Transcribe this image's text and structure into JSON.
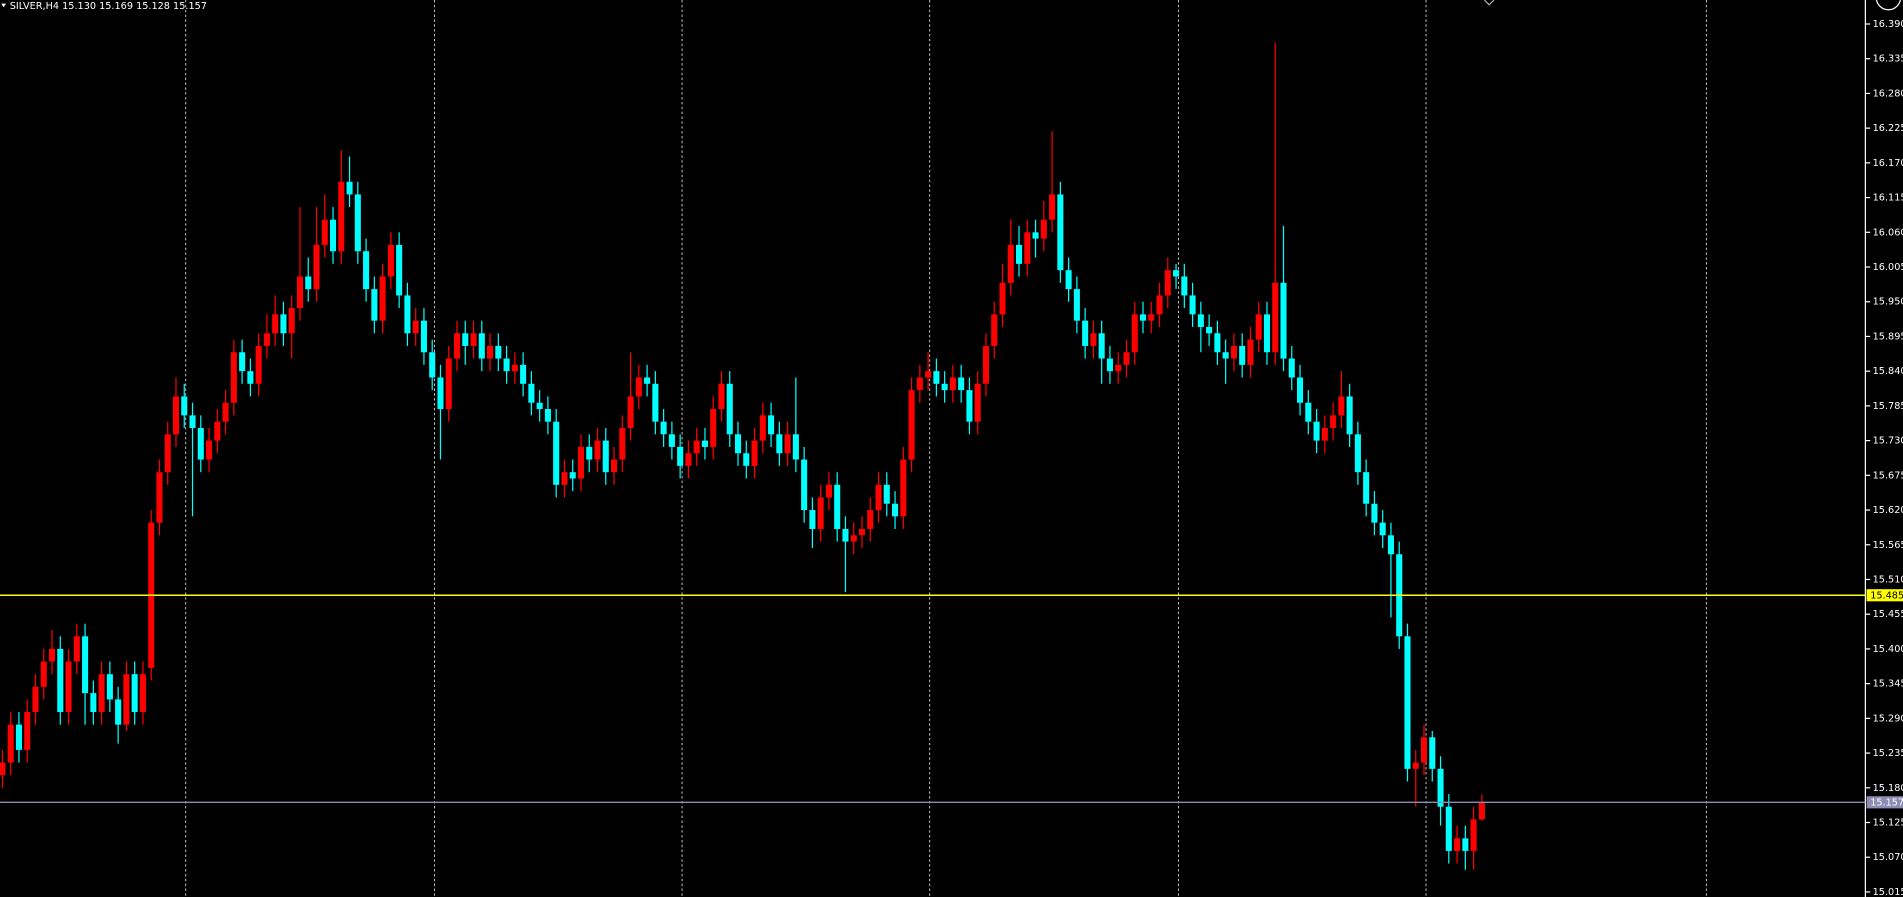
{
  "chart_data": {
    "type": "candlestick",
    "title": "SILVER,H4  15.130 15.169 15.128 15.157",
    "up_color": "#ff0000",
    "down_color": "#00ffff",
    "ylim": [
      15.007,
      16.428
    ],
    "yticks": [
      {
        "value": 16.39,
        "label": "16.390"
      },
      16.335,
      {
        "value": 16.28,
        "label": "16.280"
      },
      16.225,
      {
        "value": 16.17,
        "label": "16.170"
      },
      16.115,
      {
        "value": 16.06,
        "label": "16.060"
      },
      16.005,
      {
        "value": 15.95,
        "label": "15.950"
      },
      15.895,
      {
        "value": 15.84,
        "label": "15.840"
      },
      15.785,
      {
        "value": 15.73,
        "label": "15.730"
      },
      15.675,
      {
        "value": 15.62,
        "label": "15.620"
      },
      15.565,
      {
        "value": 15.51,
        "label": "15.510"
      },
      15.455,
      {
        "value": 15.4,
        "label": "15.400"
      },
      15.345,
      {
        "value": 15.29,
        "label": "15.290"
      },
      15.235,
      {
        "value": 15.18,
        "label": "15.180"
      },
      15.125,
      {
        "value": 15.07,
        "label": "15.070"
      },
      15.015
    ],
    "levels": [
      {
        "value": 15.485,
        "color": "#ffff00",
        "text_color": "#000000"
      },
      {
        "value": 15.157,
        "color": "#8c8cb4",
        "text_color": "#ffffff"
      }
    ],
    "open": [
      15.2,
      15.22,
      15.28,
      15.24,
      15.3,
      15.34,
      15.38,
      15.4,
      15.3,
      15.38,
      15.42,
      15.33,
      15.3,
      15.36,
      15.32,
      15.28,
      15.36,
      15.3,
      15.37,
      15.6,
      15.68,
      15.74,
      15.8,
      15.77,
      15.75,
      15.7,
      15.73,
      15.76,
      15.79,
      15.87,
      15.84,
      15.82,
      15.88,
      15.9,
      15.93,
      15.9,
      15.94,
      15.99,
      15.97,
      16.04,
      16.08,
      16.03,
      16.14,
      16.12,
      16.03,
      15.97,
      15.92,
      15.99,
      16.04,
      15.96,
      15.9,
      15.92,
      15.87,
      15.83,
      15.78,
      15.86,
      15.9,
      15.88,
      15.9,
      15.86,
      15.88,
      15.86,
      15.84,
      15.85,
      15.82,
      15.79,
      15.78,
      15.76,
      15.66,
      15.68,
      15.67,
      15.72,
      15.7,
      15.73,
      15.68,
      15.7,
      15.75,
      15.8,
      15.83,
      15.82,
      15.76,
      15.74,
      15.72,
      15.69,
      15.71,
      15.73,
      15.72,
      15.78,
      15.82,
      15.74,
      15.71,
      15.69,
      15.73,
      15.77,
      15.74,
      15.71,
      15.74,
      15.7,
      15.62,
      15.59,
      15.64,
      15.66,
      15.59,
      15.57,
      15.58,
      15.59,
      15.62,
      15.66,
      15.63,
      15.61,
      15.7,
      15.81,
      15.83,
      15.84,
      15.82,
      15.81,
      15.83,
      15.81,
      15.76,
      15.82,
      15.88,
      15.93,
      15.98,
      16.04,
      16.01,
      16.06,
      16.05,
      16.08,
      16.12,
      16.0,
      15.97,
      15.92,
      15.88,
      15.9,
      15.86,
      15.84,
      15.85,
      15.87,
      15.93,
      15.92,
      15.93,
      15.96,
      16.0,
      15.99,
      15.96,
      15.93,
      15.91,
      15.9,
      15.87,
      15.86,
      15.88,
      15.85,
      15.89,
      15.93,
      15.87,
      15.98,
      15.86,
      15.83,
      15.79,
      15.76,
      15.73,
      15.75,
      15.77,
      15.8,
      15.74,
      15.68,
      15.63,
      15.6,
      15.58,
      15.55,
      15.42,
      15.21,
      15.22,
      15.26,
      15.21,
      15.15,
      15.08,
      15.1,
      15.08,
      15.13
    ],
    "high": [
      15.24,
      15.3,
      15.3,
      15.32,
      15.36,
      15.4,
      15.43,
      15.42,
      15.4,
      15.44,
      15.44,
      15.35,
      15.38,
      15.38,
      15.34,
      15.38,
      15.38,
      15.38,
      15.62,
      15.7,
      15.76,
      15.83,
      15.82,
      15.79,
      15.77,
      15.75,
      15.78,
      15.81,
      15.89,
      15.89,
      15.86,
      15.9,
      15.93,
      15.96,
      15.95,
      15.96,
      16.1,
      16.02,
      16.1,
      16.12,
      16.1,
      16.19,
      16.18,
      16.14,
      16.05,
      15.99,
      16.01,
      16.06,
      16.06,
      15.98,
      15.94,
      15.94,
      15.89,
      15.85,
      15.88,
      15.92,
      15.92,
      15.92,
      15.92,
      15.9,
      15.9,
      15.88,
      15.87,
      15.87,
      15.84,
      15.81,
      15.8,
      15.78,
      15.7,
      15.7,
      15.74,
      15.74,
      15.75,
      15.75,
      15.72,
      15.77,
      15.87,
      15.85,
      15.85,
      15.84,
      15.78,
      15.76,
      15.74,
      15.73,
      15.75,
      15.75,
      15.8,
      15.84,
      15.84,
      15.76,
      15.73,
      15.75,
      15.79,
      15.79,
      15.76,
      15.76,
      15.83,
      15.72,
      15.64,
      15.66,
      15.68,
      15.68,
      15.61,
      15.6,
      15.61,
      15.64,
      15.68,
      15.68,
      15.65,
      15.72,
      15.83,
      15.85,
      15.87,
      15.86,
      15.84,
      15.85,
      15.85,
      15.83,
      15.84,
      15.9,
      15.95,
      16.01,
      16.08,
      16.07,
      16.08,
      16.08,
      16.11,
      16.22,
      16.14,
      16.02,
      15.99,
      15.94,
      15.92,
      15.92,
      15.88,
      15.87,
      15.89,
      15.95,
      15.95,
      15.95,
      15.98,
      16.02,
      16.01,
      16.01,
      15.98,
      15.95,
      15.93,
      15.92,
      15.89,
      15.9,
      15.9,
      15.91,
      15.95,
      15.95,
      16.36,
      16.07,
      15.88,
      15.85,
      15.81,
      15.78,
      15.77,
      15.79,
      15.84,
      15.82,
      15.76,
      15.7,
      15.65,
      15.62,
      15.6,
      15.57,
      15.44,
      15.24,
      15.28,
      15.27,
      15.23,
      15.17,
      15.12,
      15.12,
      15.15,
      15.169
    ],
    "low": [
      15.18,
      15.2,
      15.22,
      15.22,
      15.28,
      15.32,
      15.36,
      15.28,
      15.28,
      15.36,
      15.28,
      15.28,
      15.28,
      15.3,
      15.25,
      15.27,
      15.28,
      15.28,
      15.35,
      15.58,
      15.66,
      15.72,
      15.75,
      15.61,
      15.68,
      15.68,
      15.71,
      15.74,
      15.77,
      15.82,
      15.8,
      15.8,
      15.86,
      15.88,
      15.88,
      15.86,
      15.92,
      15.95,
      15.95,
      16.02,
      16.01,
      16.01,
      16.1,
      16.01,
      15.95,
      15.9,
      15.9,
      15.97,
      15.94,
      15.88,
      15.88,
      15.85,
      15.81,
      15.7,
      15.76,
      15.84,
      15.85,
      15.86,
      15.84,
      15.84,
      15.84,
      15.82,
      15.82,
      15.8,
      15.77,
      15.76,
      15.74,
      15.64,
      15.64,
      15.65,
      15.65,
      15.68,
      15.68,
      15.66,
      15.66,
      15.68,
      15.73,
      15.78,
      15.8,
      15.74,
      15.72,
      15.7,
      15.67,
      15.67,
      15.69,
      15.7,
      15.7,
      15.76,
      15.72,
      15.69,
      15.67,
      15.67,
      15.71,
      15.72,
      15.69,
      15.69,
      15.68,
      15.6,
      15.56,
      15.57,
      15.62,
      15.57,
      15.49,
      15.55,
      15.56,
      15.57,
      15.6,
      15.61,
      15.59,
      15.59,
      15.68,
      15.79,
      15.81,
      15.8,
      15.79,
      15.79,
      15.79,
      15.74,
      15.74,
      15.8,
      15.86,
      15.91,
      15.96,
      15.99,
      15.99,
      16.02,
      16.03,
      16.06,
      15.98,
      15.95,
      15.9,
      15.86,
      15.86,
      15.82,
      15.82,
      15.82,
      15.83,
      15.85,
      15.9,
      15.9,
      15.91,
      15.94,
      15.97,
      15.94,
      15.91,
      15.87,
      15.88,
      15.85,
      15.82,
      15.84,
      15.83,
      15.83,
      15.87,
      15.85,
      15.85,
      15.84,
      15.81,
      15.77,
      15.74,
      15.71,
      15.71,
      15.73,
      15.75,
      15.72,
      15.66,
      15.61,
      15.58,
      15.56,
      15.45,
      15.4,
      15.19,
      15.15,
      15.2,
      15.19,
      15.12,
      15.06,
      15.06,
      15.05,
      15.05,
      15.128
    ],
    "close": [
      15.22,
      15.28,
      15.24,
      15.3,
      15.34,
      15.38,
      15.4,
      15.3,
      15.38,
      15.42,
      15.33,
      15.3,
      15.36,
      15.32,
      15.28,
      15.36,
      15.3,
      15.36,
      15.6,
      15.68,
      15.74,
      15.8,
      15.77,
      15.75,
      15.7,
      15.73,
      15.76,
      15.79,
      15.87,
      15.84,
      15.82,
      15.88,
      15.9,
      15.93,
      15.9,
      15.94,
      15.99,
      15.97,
      16.04,
      16.08,
      16.03,
      16.14,
      16.12,
      16.03,
      15.97,
      15.92,
      15.99,
      16.04,
      15.96,
      15.9,
      15.92,
      15.87,
      15.83,
      15.78,
      15.86,
      15.9,
      15.88,
      15.9,
      15.86,
      15.88,
      15.86,
      15.84,
      15.85,
      15.82,
      15.79,
      15.78,
      15.76,
      15.66,
      15.68,
      15.67,
      15.72,
      15.7,
      15.73,
      15.68,
      15.7,
      15.75,
      15.8,
      15.83,
      15.82,
      15.76,
      15.74,
      15.72,
      15.69,
      15.71,
      15.73,
      15.72,
      15.78,
      15.82,
      15.74,
      15.71,
      15.69,
      15.73,
      15.77,
      15.74,
      15.71,
      15.74,
      15.7,
      15.62,
      15.59,
      15.64,
      15.66,
      15.59,
      15.57,
      15.58,
      15.59,
      15.62,
      15.66,
      15.63,
      15.61,
      15.7,
      15.81,
      15.83,
      15.84,
      15.82,
      15.81,
      15.83,
      15.81,
      15.76,
      15.82,
      15.88,
      15.93,
      15.98,
      16.04,
      16.01,
      16.06,
      16.05,
      16.08,
      16.12,
      16.0,
      15.97,
      15.92,
      15.88,
      15.9,
      15.86,
      15.84,
      15.85,
      15.87,
      15.93,
      15.92,
      15.93,
      15.96,
      16.0,
      15.99,
      15.96,
      15.93,
      15.91,
      15.9,
      15.87,
      15.86,
      15.88,
      15.85,
      15.89,
      15.93,
      15.87,
      15.98,
      15.86,
      15.83,
      15.79,
      15.76,
      15.73,
      15.75,
      15.77,
      15.8,
      15.74,
      15.68,
      15.63,
      15.6,
      15.58,
      15.55,
      15.42,
      15.21,
      15.22,
      15.26,
      15.21,
      15.15,
      15.08,
      15.1,
      15.08,
      15.13,
      15.157
    ]
  }
}
